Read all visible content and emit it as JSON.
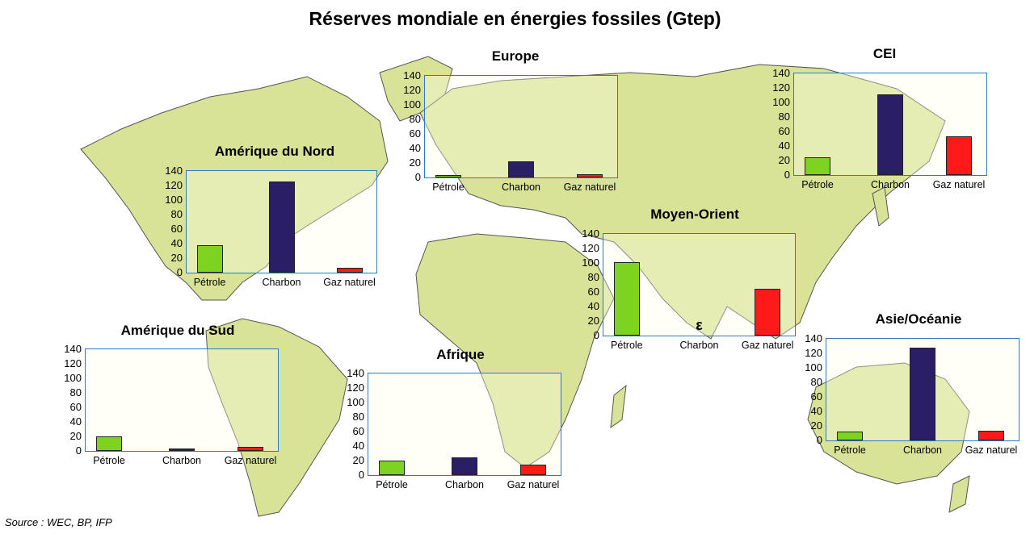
{
  "title": "Réserves mondiale en énergies fossiles (Gtep)",
  "source": "Source : WEC, BP, IFP",
  "colors": {
    "petrole": "#7ed321",
    "charbon": "#2a1f66",
    "gaz": "#ff1a1a",
    "land": "#d9e397",
    "land_light": "#fbfbd8",
    "frame": "#2b7bc4"
  },
  "chart_data": [
    {
      "type": "bar",
      "title": "Amérique du Nord",
      "categories": [
        "Pétrole",
        "Charbon",
        "Gaz naturel"
      ],
      "values": [
        38,
        126,
        7
      ],
      "ylim": [
        0,
        140
      ],
      "yticks": [
        "0",
        "20",
        "40",
        "60",
        "80",
        "100",
        "120",
        "140"
      ],
      "annotation": ""
    },
    {
      "type": "bar",
      "title": "Europe",
      "categories": [
        "Pétrole",
        "Charbon",
        "Gaz naturel"
      ],
      "values": [
        3,
        22,
        5
      ],
      "ylim": [
        0,
        140
      ],
      "yticks": [
        "0",
        "20",
        "40",
        "60",
        "80",
        "100",
        "120",
        "140"
      ],
      "annotation": ""
    },
    {
      "type": "bar",
      "title": "CEI",
      "categories": [
        "Pétrole",
        "Charbon",
        "Gaz naturel"
      ],
      "values": [
        24,
        111,
        53
      ],
      "ylim": [
        0,
        140
      ],
      "yticks": [
        "0",
        "20",
        "40",
        "60",
        "80",
        "100",
        "120",
        "140"
      ],
      "annotation": ""
    },
    {
      "type": "bar",
      "title": "Moyen-Orient",
      "categories": [
        "Pétrole",
        "Charbon",
        "Gaz naturel"
      ],
      "values": [
        101,
        0,
        64
      ],
      "ylim": [
        0,
        140
      ],
      "yticks": [
        "0",
        "20",
        "40",
        "60",
        "80",
        "100",
        "120",
        "140"
      ],
      "annotation": "ε"
    },
    {
      "type": "bar",
      "title": "Amérique du Sud",
      "categories": [
        "Pétrole",
        "Charbon",
        "Gaz naturel"
      ],
      "values": [
        20,
        3,
        6
      ],
      "ylim": [
        0,
        140
      ],
      "yticks": [
        "0",
        "20",
        "40",
        "60",
        "80",
        "100",
        "120",
        "140"
      ],
      "annotation": ""
    },
    {
      "type": "bar",
      "title": "Afrique",
      "categories": [
        "Pétrole",
        "Charbon",
        "Gaz naturel"
      ],
      "values": [
        20,
        25,
        14
      ],
      "ylim": [
        0,
        140
      ],
      "yticks": [
        "0",
        "20",
        "40",
        "60",
        "80",
        "100",
        "120",
        "140"
      ],
      "annotation": ""
    },
    {
      "type": "bar",
      "title": "Asie/Océanie",
      "categories": [
        "Pétrole",
        "Charbon",
        "Gaz naturel"
      ],
      "values": [
        12,
        128,
        13
      ],
      "ylim": [
        0,
        140
      ],
      "yticks": [
        "0",
        "20",
        "40",
        "60",
        "80",
        "100",
        "120",
        "140"
      ],
      "annotation": ""
    }
  ]
}
